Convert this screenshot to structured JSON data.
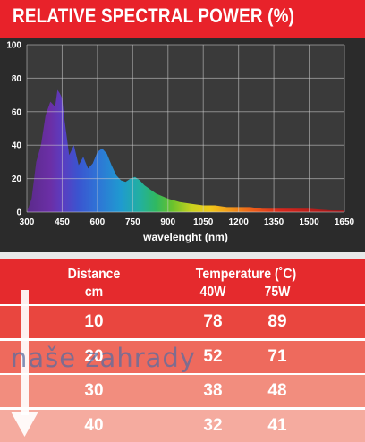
{
  "title": "RELATIVE SPECTRAL POWER (%)",
  "chart_data": {
    "type": "area",
    "title": "RELATIVE SPECTRAL POWER (%)",
    "xlabel": "wavelenght (nm)",
    "ylabel": "",
    "xlim": [
      300,
      1650
    ],
    "ylim": [
      0,
      100
    ],
    "x_ticks": [
      "300",
      "450",
      "600",
      "750",
      "900",
      "1050",
      "1200",
      "1350",
      "1500",
      "1650"
    ],
    "y_ticks": [
      "0",
      "20",
      "40",
      "60",
      "80",
      "100"
    ],
    "grid": true,
    "x": [
      300,
      320,
      340,
      360,
      380,
      400,
      420,
      430,
      440,
      450,
      460,
      480,
      500,
      520,
      540,
      560,
      580,
      600,
      620,
      640,
      660,
      680,
      700,
      720,
      740,
      760,
      780,
      800,
      850,
      900,
      950,
      1000,
      1050,
      1100,
      1150,
      1200,
      1250,
      1300,
      1350,
      1400,
      1450,
      1500,
      1550,
      1600,
      1650
    ],
    "values": [
      0,
      8,
      30,
      40,
      58,
      66,
      63,
      73,
      71,
      68,
      55,
      34,
      40,
      28,
      33,
      26,
      29,
      36,
      38,
      35,
      28,
      22,
      19,
      18,
      20,
      21,
      19,
      16,
      11,
      8,
      6,
      5,
      4,
      4,
      3,
      3,
      3,
      2,
      2,
      2,
      2,
      2,
      1.5,
      1,
      1
    ]
  },
  "table": {
    "headers": {
      "distance": "Distance",
      "distance_unit": "cm",
      "temperature": "Temperature (˚C)",
      "col_40w": "40W",
      "col_75w": "75W"
    },
    "rows": [
      {
        "distance": "10",
        "t40": "78",
        "t75": "89",
        "color": "#e9463f"
      },
      {
        "distance": "20",
        "t40": "52",
        "t75": "71",
        "color": "#ee6a5d"
      },
      {
        "distance": "30",
        "t40": "38",
        "t75": "48",
        "color": "#f28d7e"
      },
      {
        "distance": "40",
        "t40": "32",
        "t75": "41",
        "color": "#f5ab9f"
      }
    ]
  },
  "watermark": "naše zahrady"
}
